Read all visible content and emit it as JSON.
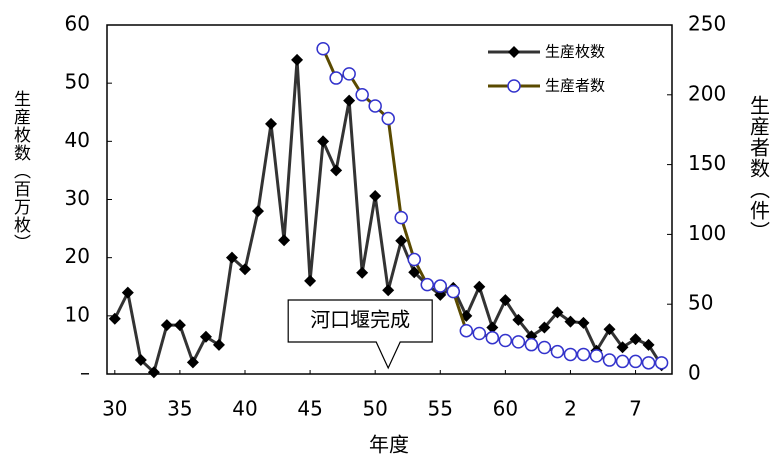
{
  "chart_data": {
    "type": "line",
    "x_label": "年度",
    "y_label": "生産枚数（百万枚）",
    "y2_label": "生産者数（件）",
    "annotation": "河口堰完成",
    "annotation_x": 51,
    "x": [
      30,
      31,
      32,
      33,
      34,
      35,
      36,
      37,
      38,
      39,
      40,
      41,
      42,
      43,
      44,
      45,
      46,
      47,
      48,
      49,
      50,
      51,
      52,
      53,
      54,
      55,
      56,
      57,
      58,
      59,
      60,
      61,
      62,
      63,
      64,
      65,
      66,
      67,
      68,
      69,
      70,
      71,
      72
    ],
    "xlim": [
      29.4,
      72.8
    ],
    "xticks": [
      30,
      35,
      40,
      45,
      50,
      55,
      60,
      {
        "value": 65,
        "label": "2"
      },
      {
        "value": 70,
        "label": "7"
      }
    ],
    "ylim": [
      0,
      60
    ],
    "yticks": [
      {
        "value": 0,
        "label": "–"
      },
      10,
      20,
      30,
      40,
      50,
      60
    ],
    "y2lim": [
      0,
      250
    ],
    "y2ticks": [
      0,
      50,
      100,
      150,
      200,
      250
    ],
    "legend": "upper right",
    "series": [
      {
        "name": "生産枚数",
        "color": "#333333",
        "marker": "diamond",
        "values": [
          9.5,
          14,
          2.4,
          0.3,
          8.4,
          8.4,
          2,
          6.4,
          5,
          20,
          18,
          28,
          43,
          23,
          54,
          16,
          40,
          35,
          47,
          17.4,
          30.6,
          14.4,
          22.9,
          17.5,
          15.3,
          13.6,
          14.8,
          10,
          15,
          8,
          12.7,
          9.3,
          6.5,
          8,
          10.6,
          9,
          8.8,
          4,
          7.7,
          4.6,
          6,
          5,
          1.5
        ]
      },
      {
        "name": "生産者数",
        "color": "#5a4a00",
        "marker": "circle",
        "axis": "y2",
        "values": [
          null,
          null,
          null,
          null,
          null,
          null,
          null,
          null,
          null,
          null,
          null,
          null,
          null,
          null,
          null,
          null,
          233,
          212,
          215,
          200,
          192,
          183,
          112,
          82,
          64,
          63,
          59,
          31,
          29,
          26,
          24,
          23,
          21,
          19,
          16,
          14,
          14,
          13,
          10,
          9,
          9,
          8,
          8
        ]
      }
    ]
  }
}
